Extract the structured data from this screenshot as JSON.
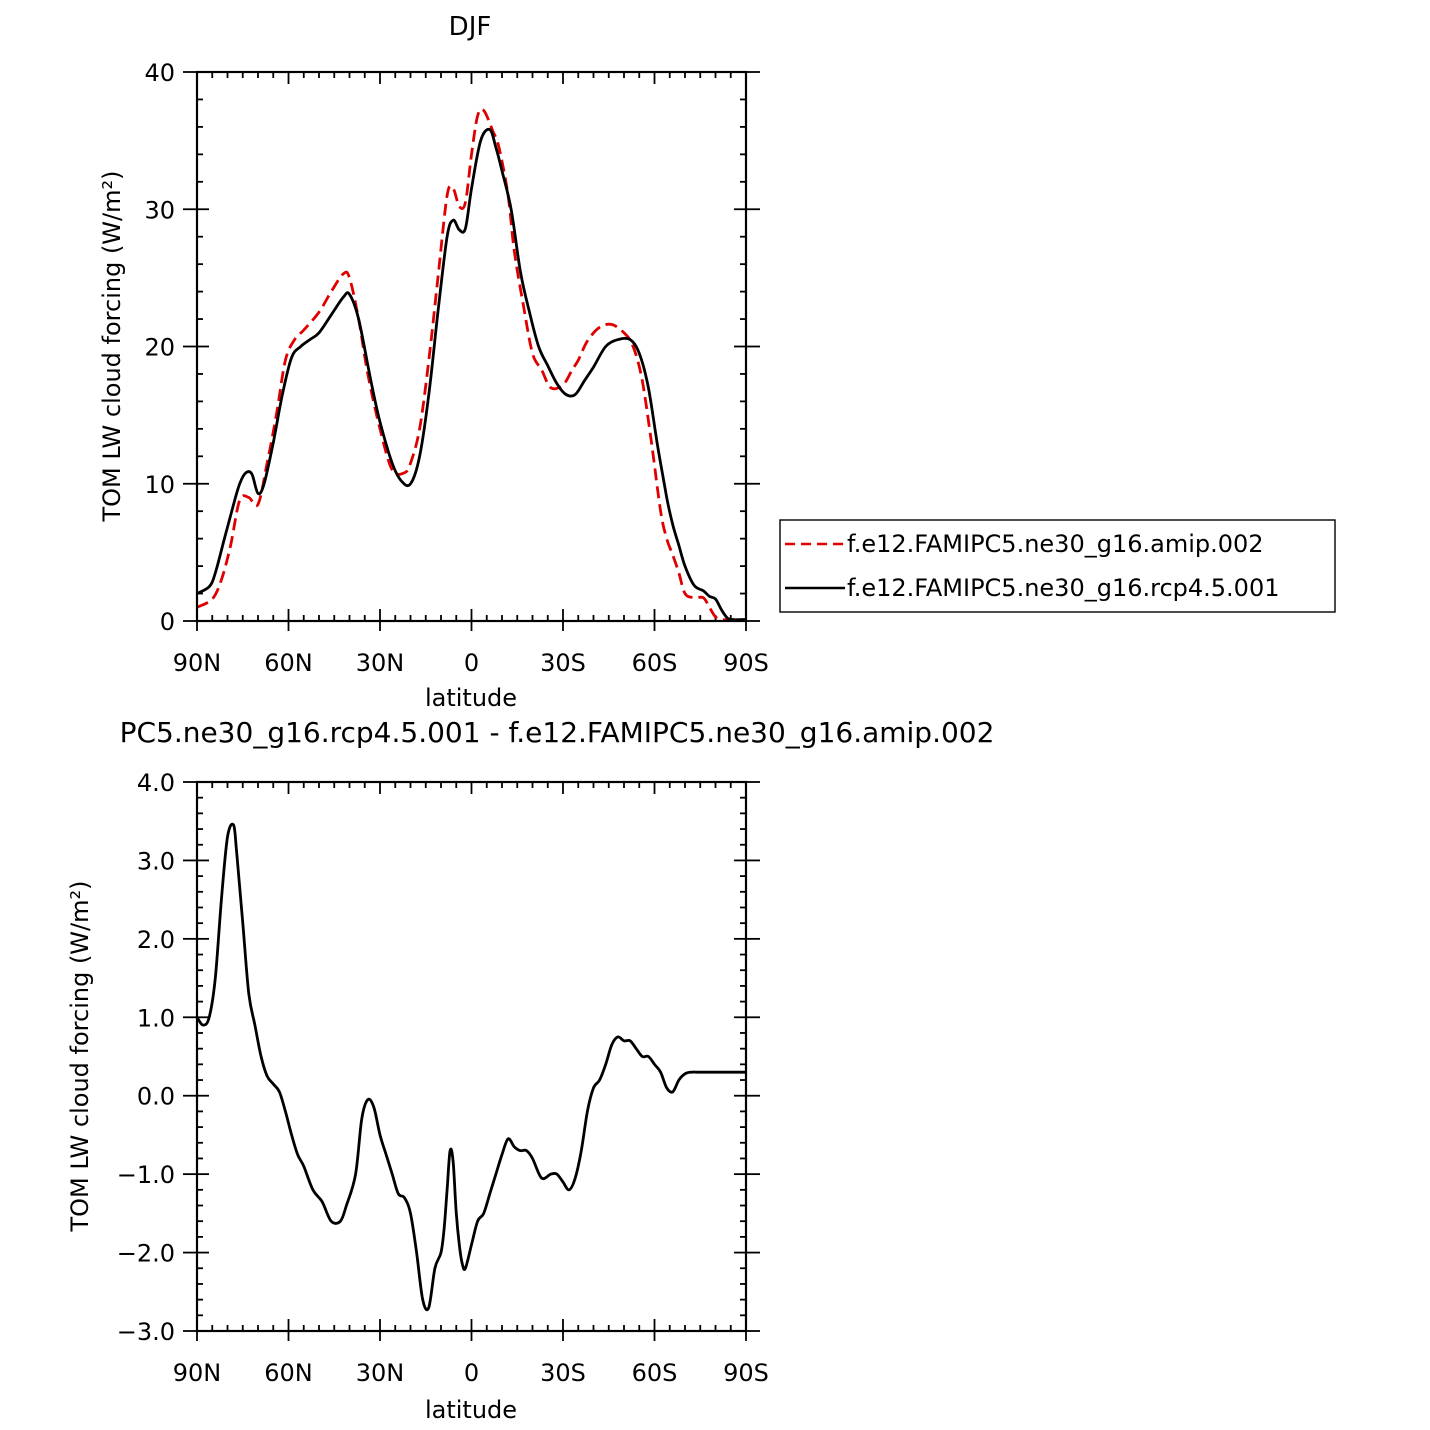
{
  "chart_data": [
    {
      "type": "line",
      "title": "DJF",
      "xlabel": "latitude",
      "ylabel": "TOM LW cloud forcing (W/m²)",
      "xlim": [
        90,
        -90
      ],
      "ylim": [
        0,
        40
      ],
      "x_ticks": [
        {
          "value": 90,
          "label": "90N"
        },
        {
          "value": 60,
          "label": "60N"
        },
        {
          "value": 30,
          "label": "30N"
        },
        {
          "value": 0,
          "label": "0"
        },
        {
          "value": -30,
          "label": "30S"
        },
        {
          "value": -60,
          "label": "60S"
        },
        {
          "value": -90,
          "label": "90S"
        }
      ],
      "y_ticks": [
        {
          "value": 0,
          "label": "0"
        },
        {
          "value": 10,
          "label": "10"
        },
        {
          "value": 20,
          "label": "20"
        },
        {
          "value": 30,
          "label": "30"
        },
        {
          "value": 40,
          "label": "40"
        }
      ],
      "legend": "right",
      "series": [
        {
          "name": "f.e12.FAMIPC5.ne30_g16.amip.002",
          "color": "#e00000",
          "dash": "dashed",
          "x": [
            90,
            85,
            82,
            79,
            76,
            73,
            70,
            67,
            64,
            61,
            58,
            55,
            50,
            46,
            42,
            40,
            37,
            34,
            30,
            26,
            22,
            20,
            17,
            14,
            11,
            8,
            6,
            4,
            2,
            0,
            -2,
            -4,
            -7,
            -9,
            -12,
            -14,
            -17,
            -20,
            -23,
            -26,
            -30,
            -33,
            -35,
            -38,
            -42,
            -46,
            -50,
            -53,
            -56,
            -59,
            -62,
            -64,
            -66,
            -68,
            -70,
            -73,
            -76,
            -78,
            -80,
            -82,
            -84,
            -86,
            -88,
            -90
          ],
          "y": [
            1.0,
            1.6,
            3.0,
            5.5,
            8.8,
            9.0,
            8.5,
            11.5,
            15.0,
            19.0,
            20.5,
            21.2,
            22.5,
            24.0,
            25.3,
            25.0,
            22.0,
            18.0,
            14.0,
            11.0,
            10.8,
            11.5,
            14.0,
            19.0,
            25.0,
            31.0,
            31.5,
            30.2,
            30.5,
            34.0,
            36.8,
            37.2,
            35.7,
            34.5,
            31.0,
            27.0,
            23.0,
            19.5,
            18.3,
            17.0,
            17.2,
            18.3,
            19.0,
            20.4,
            21.4,
            21.6,
            21.0,
            20.0,
            17.5,
            13.0,
            8.0,
            6.0,
            4.8,
            3.5,
            2.0,
            1.7,
            1.7,
            1.0,
            0.3,
            0.1,
            0.1,
            0.1,
            0.1,
            0.1
          ]
        },
        {
          "name": "f.e12.FAMIPC5.ne30_g16.rcp4.5.001",
          "color": "#000000",
          "dash": "solid",
          "x": [
            90,
            86,
            84,
            81,
            78,
            76,
            74,
            72,
            70,
            68,
            65,
            62,
            59,
            56,
            53,
            50,
            46,
            42,
            40,
            37,
            33,
            30,
            26,
            23,
            20,
            17,
            14,
            11,
            8,
            6,
            4,
            2,
            0,
            -3,
            -6,
            -8,
            -10,
            -13,
            -16,
            -19,
            -22,
            -25,
            -28,
            -31,
            -34,
            -37,
            -40,
            -44,
            -48,
            -52,
            -55,
            -58,
            -61,
            -64,
            -66,
            -68,
            -70,
            -73,
            -76,
            -78,
            -80,
            -82,
            -84,
            -86,
            -88,
            -90
          ],
          "y": [
            2.0,
            2.5,
            3.5,
            6.0,
            8.5,
            10.0,
            10.8,
            10.7,
            9.3,
            10.0,
            13.0,
            16.5,
            19.2,
            20.0,
            20.5,
            21.0,
            22.3,
            23.6,
            23.8,
            22.0,
            17.5,
            14.5,
            11.5,
            10.2,
            10.0,
            12.0,
            16.5,
            22.5,
            28.0,
            29.2,
            28.5,
            28.6,
            31.5,
            35.0,
            35.8,
            34.5,
            32.8,
            30.0,
            25.5,
            22.5,
            20.0,
            18.6,
            17.3,
            16.5,
            16.5,
            17.5,
            18.5,
            20.0,
            20.5,
            20.5,
            19.5,
            17.0,
            12.8,
            9.0,
            7.0,
            5.5,
            4.0,
            2.6,
            2.2,
            1.8,
            1.6,
            0.8,
            0.2,
            0.1,
            0.1,
            0.1
          ]
        }
      ]
    },
    {
      "type": "line",
      "title": "PC5.ne30_g16.rcp4.5.001 - f.e12.FAMIPC5.ne30_g16.amip.002",
      "xlabel": "latitude",
      "ylabel": "TOM LW cloud forcing (W/m²)",
      "xlim": [
        90,
        -90
      ],
      "ylim": [
        -3,
        4
      ],
      "x_ticks": [
        {
          "value": 90,
          "label": "90N"
        },
        {
          "value": 60,
          "label": "60N"
        },
        {
          "value": 30,
          "label": "30N"
        },
        {
          "value": 0,
          "label": "0"
        },
        {
          "value": -30,
          "label": "30S"
        },
        {
          "value": -60,
          "label": "60S"
        },
        {
          "value": -90,
          "label": "90S"
        }
      ],
      "y_ticks": [
        {
          "value": -3,
          "label": "−3.0"
        },
        {
          "value": -2,
          "label": "−2.0"
        },
        {
          "value": -1,
          "label": "−1.0"
        },
        {
          "value": 0,
          "label": "0.0"
        },
        {
          "value": 1,
          "label": "1.0"
        },
        {
          "value": 2,
          "label": "2.0"
        },
        {
          "value": 3,
          "label": "3.0"
        },
        {
          "value": 4,
          "label": "4.0"
        }
      ],
      "series": [
        {
          "color": "#000000",
          "dash": "solid",
          "x": [
            90,
            88,
            86,
            84,
            82,
            80,
            78,
            77,
            75,
            73,
            71,
            69,
            67,
            65,
            63,
            61,
            59,
            57,
            55,
            52,
            49,
            46,
            43,
            41,
            38,
            36,
            34,
            32,
            30,
            28,
            26,
            24,
            22,
            20,
            18,
            16,
            14,
            12,
            10,
            9,
            8,
            7,
            6,
            5,
            4,
            3,
            2,
            0,
            -2,
            -4,
            -6,
            -8,
            -10,
            -12,
            -14,
            -16,
            -18,
            -20,
            -23,
            -26,
            -28,
            -30,
            -32,
            -34,
            -36,
            -38,
            -40,
            -42,
            -44,
            -46,
            -48,
            -50,
            -52,
            -54,
            -56,
            -58,
            -60,
            -62,
            -64,
            -66,
            -68,
            -70,
            -72,
            -74,
            -76,
            -78,
            -80,
            -82,
            -84,
            -86,
            -88,
            -90
          ],
          "y": [
            1.0,
            0.9,
            1.0,
            1.5,
            2.5,
            3.3,
            3.45,
            3.1,
            2.2,
            1.3,
            0.9,
            0.5,
            0.25,
            0.15,
            0.05,
            -0.2,
            -0.5,
            -0.75,
            -0.9,
            -1.2,
            -1.35,
            -1.6,
            -1.6,
            -1.4,
            -1.0,
            -0.3,
            -0.05,
            -0.15,
            -0.5,
            -0.75,
            -1.0,
            -1.25,
            -1.3,
            -1.5,
            -2.0,
            -2.6,
            -2.7,
            -2.2,
            -2.0,
            -1.7,
            -1.2,
            -0.7,
            -0.85,
            -1.5,
            -1.9,
            -2.15,
            -2.2,
            -1.9,
            -1.6,
            -1.5,
            -1.25,
            -1.0,
            -0.75,
            -0.55,
            -0.65,
            -0.7,
            -0.7,
            -0.8,
            -1.05,
            -1.0,
            -1.0,
            -1.1,
            -1.2,
            -1.05,
            -0.7,
            -0.2,
            0.1,
            0.2,
            0.4,
            0.65,
            0.75,
            0.7,
            0.7,
            0.6,
            0.5,
            0.5,
            0.4,
            0.3,
            0.1,
            0.05,
            0.2,
            0.28,
            0.3,
            0.3,
            0.3,
            0.3,
            0.3,
            0.3,
            0.3,
            0.3,
            0.3,
            0.3
          ]
        }
      ]
    }
  ]
}
